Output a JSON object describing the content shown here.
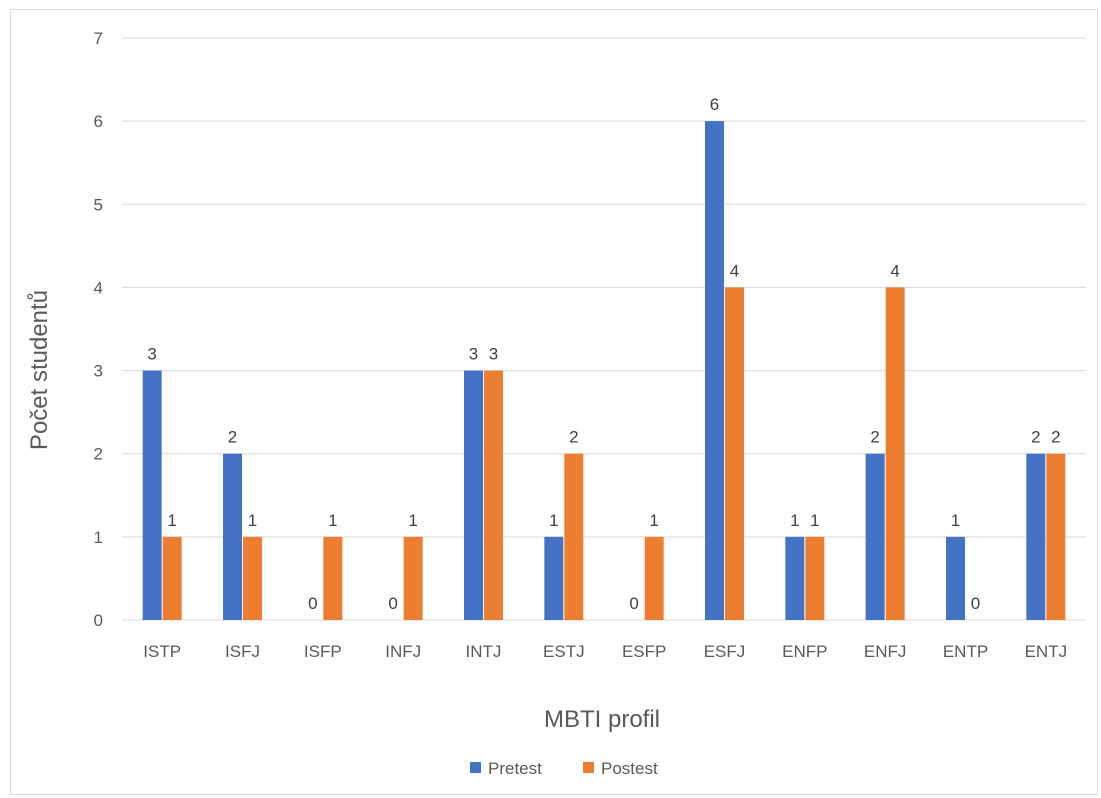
{
  "chart_data": {
    "type": "bar",
    "xlabel": "MBTI profil",
    "ylabel": "Počet studentů",
    "ylim": [
      0,
      7
    ],
    "yticks": [
      0,
      1,
      2,
      3,
      4,
      5,
      6,
      7
    ],
    "grid": true,
    "legend_position": "bottom",
    "categories": [
      "ISTP",
      "ISFJ",
      "ISFP",
      "INFJ",
      "INTJ",
      "ESTJ",
      "ESFP",
      "ESFJ",
      "ENFP",
      "ENFJ",
      "ENTP",
      "ENTJ"
    ],
    "series": [
      {
        "name": "Pretest",
        "color": "#4472c4",
        "values": [
          3,
          2,
          0,
          0,
          3,
          1,
          0,
          6,
          1,
          2,
          1,
          2
        ]
      },
      {
        "name": "Postest",
        "color": "#ed7d31",
        "values": [
          1,
          1,
          1,
          1,
          3,
          2,
          1,
          4,
          1,
          4,
          0,
          2
        ]
      }
    ],
    "data_labels": true
  }
}
